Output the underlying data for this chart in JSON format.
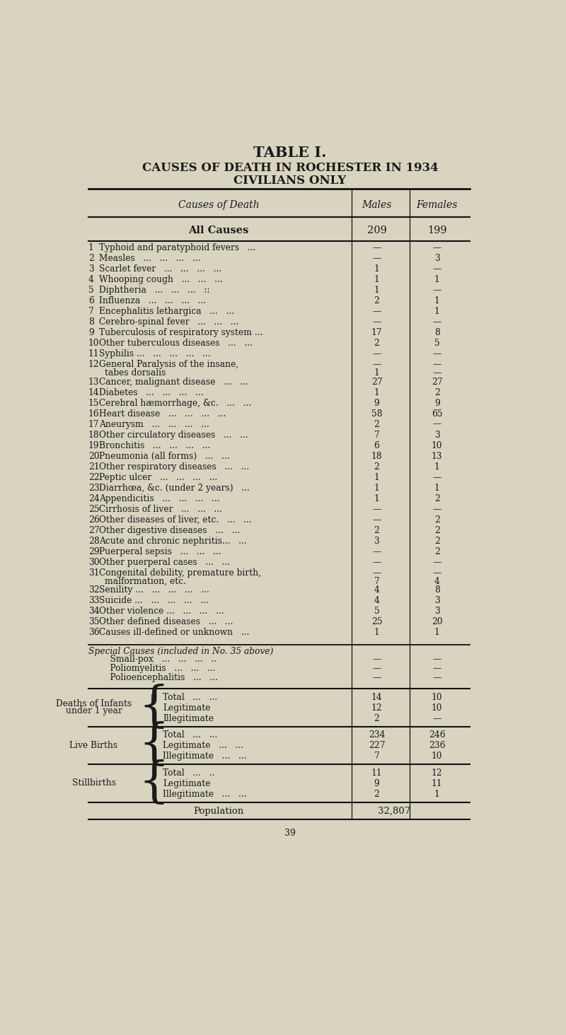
{
  "title1": "TABLE I.",
  "title2": "CAUSES OF DEATH IN ROCHESTER IN 1934",
  "title3": "CIVILIANS ONLY",
  "bg_color": "#d8d4c0",
  "text_color": "#1a1a1a",
  "rows": [
    {
      "num": "1",
      "cause": "Typhoid and paratyphoid fevers   ...",
      "males": "—",
      "females": "—"
    },
    {
      "num": "2",
      "cause": "Measles   ...   ...   ...   ...",
      "males": "—",
      "females": "3"
    },
    {
      "num": "3",
      "cause": "Scarlet fever   ...   ...   ...   ...",
      "males": "1",
      "females": "—"
    },
    {
      "num": "4",
      "cause": "Whooping cough   ...   ...   ...",
      "males": "1",
      "females": "1"
    },
    {
      "num": "5",
      "cause": "Diphtheria   ...   ...   ...   ::",
      "males": "1",
      "females": "—"
    },
    {
      "num": "6",
      "cause": "Influenza   ...   ...   ...   ...",
      "males": "2",
      "females": "1"
    },
    {
      "num": "7",
      "cause": "Encephalitis lethargica   ...   ...",
      "males": "—",
      "females": "1"
    },
    {
      "num": "8",
      "cause": "Cerebro-spinal fever   ...   ...   ...",
      "males": "—",
      "females": "—"
    },
    {
      "num": "9",
      "cause": "Tuberculosis of respiratory system ...",
      "males": "17",
      "females": "8"
    },
    {
      "num": "10",
      "cause": "Other tuberculous diseases   ...   ...",
      "males": "2",
      "females": "5"
    },
    {
      "num": "11",
      "cause": "Syphilis ...   ...   ...   ...   ...",
      "males": "—",
      "females": "—"
    },
    {
      "num": "12",
      "cause": "General Paralysis of the insane,",
      "cause2": "        tabes dorsalis",
      "males": "—",
      "males2": "1",
      "females": "—",
      "females2": "—",
      "multiline": true
    },
    {
      "num": "13",
      "cause": "Cancer, malignant disease   ...   ...",
      "males": "27",
      "females": "27"
    },
    {
      "num": "14",
      "cause": "Diabetes   ...   ...   ...   ...",
      "males": "1",
      "females": "2"
    },
    {
      "num": "15",
      "cause": "Cerebral hæmorrhage, &c.   ...   ...",
      "males": "9",
      "females": "9"
    },
    {
      "num": "16",
      "cause": "Heart disease   ...   ...   ...   ...",
      "males": "58",
      "females": "65"
    },
    {
      "num": "17",
      "cause": "Aneurysm   ...   ...   ...   ...",
      "males": "2",
      "females": "—"
    },
    {
      "num": "18",
      "cause": "Other circulatory diseases   ...   ...",
      "males": "7",
      "females": "3"
    },
    {
      "num": "19",
      "cause": "Bronchitis   ...   ...   ...   ...",
      "males": "6",
      "females": "10"
    },
    {
      "num": "20",
      "cause": "Pneumonia (all forms)   ...   ...",
      "males": "18",
      "females": "13"
    },
    {
      "num": "21",
      "cause": "Other respiratory diseases   ...   ...",
      "males": "2",
      "females": "1"
    },
    {
      "num": "22",
      "cause": "Peptic ulcer   ...   ...   ...   ...",
      "males": "1",
      "females": "—"
    },
    {
      "num": "23",
      "cause": "Diarrhœa, &c. (under 2 years)   ...",
      "males": "1",
      "females": "1"
    },
    {
      "num": "24",
      "cause": "Appendicitis   ...   ...   ...   ...",
      "males": "1",
      "females": "2"
    },
    {
      "num": "25",
      "cause": "Cirrhosis of liver   ...   ...   ...",
      "males": "—",
      "females": "—"
    },
    {
      "num": "26",
      "cause": "Other diseases of liver, etc.   ...   ...",
      "males": "—",
      "females": "2"
    },
    {
      "num": "27",
      "cause": "Other digestive diseases   ...   ...",
      "males": "2",
      "females": "2"
    },
    {
      "num": "28",
      "cause": "Acute and chronic nephritis...   ...",
      "males": "3",
      "females": "2"
    },
    {
      "num": "29",
      "cause": "Puerperal sepsis   ...   ...   ...",
      "males": "—",
      "females": "2"
    },
    {
      "num": "30",
      "cause": "Other puerperal cases   ...   ...",
      "males": "—",
      "females": "—"
    },
    {
      "num": "31",
      "cause": "Congenital debility, premature birth,",
      "cause2": "        malformation, etc.",
      "males": "—",
      "males2": "7",
      "females": "—",
      "females2": "4",
      "multiline": true
    },
    {
      "num": "32",
      "cause": "Senility ...   ...   ...   ...   ...",
      "males": "4",
      "females": "8"
    },
    {
      "num": "33",
      "cause": "Suicide ...   ...   ...   ...   ...",
      "males": "4",
      "females": "3"
    },
    {
      "num": "34",
      "cause": "Other violence ...   ...   ...   ...",
      "males": "5",
      "females": "3"
    },
    {
      "num": "35",
      "cause": "Other defined diseases   ...   ...",
      "males": "25",
      "females": "20"
    },
    {
      "num": "36",
      "cause": "Causes ill-defined or unknown   ...",
      "males": "1",
      "females": "1"
    }
  ],
  "special_header": "Special Causes (included in No. 35 above)",
  "special_items": [
    {
      "cause": "    Small-pox   ...   ...   ...   ..",
      "males": "—",
      "females": "—"
    },
    {
      "cause": "    Poliomyelitis   ...   ...   ...",
      "males": "—",
      "females": "—"
    },
    {
      "cause": "    Polioencephalitis   ...   ...",
      "males": "—",
      "females": "—"
    }
  ],
  "infants_label1": "Deaths of Infants",
  "infants_label2": "under 1 year",
  "infants_items": [
    {
      "sub": "Total   ...   ...",
      "males": "14",
      "females": "10"
    },
    {
      "sub": "Legitimate",
      "males": "12",
      "females": "10"
    },
    {
      "sub": "Illegitimate",
      "males": "2",
      "females": "—"
    }
  ],
  "births_label": "Live Births",
  "births_items": [
    {
      "sub": "Total   ...   ...",
      "males": "234",
      "females": "246"
    },
    {
      "sub": "Legitimate   ...   ...",
      "males": "227",
      "females": "236"
    },
    {
      "sub": "Illegitimate   ...   ...",
      "males": "7",
      "females": "10"
    }
  ],
  "stillbirths_label": "Stillbirths",
  "stillbirths_items": [
    {
      "sub": "Total   ...   ..",
      "males": "11",
      "females": "12"
    },
    {
      "sub": "Legitimate",
      "males": "9",
      "females": "11"
    },
    {
      "sub": "Illegitimate   ...   ...",
      "males": "2",
      "females": "1"
    }
  ],
  "population_label": "Population",
  "population_value": "32,807",
  "page_num": "39"
}
